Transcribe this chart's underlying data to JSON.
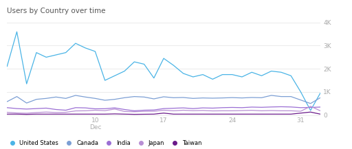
{
  "title": "Users by Country over time",
  "x_ticks": [
    10,
    17,
    24,
    31
  ],
  "x_tick_labels": [
    "10\nDec",
    "17",
    "24",
    "31"
  ],
  "ylim": [
    -50,
    4200
  ],
  "y_ticks": [
    0,
    1000,
    2000,
    3000,
    4000
  ],
  "y_tick_labels": [
    "0",
    "1K",
    "2K",
    "3K",
    "4K"
  ],
  "background_color": "#ffffff",
  "grid_color": "#e8e8e8",
  "series": {
    "United States": {
      "color": "#4ab4e6",
      "x": [
        1,
        2,
        3,
        4,
        5,
        6,
        7,
        8,
        9,
        10,
        11,
        12,
        13,
        14,
        15,
        16,
        17,
        18,
        19,
        20,
        21,
        22,
        23,
        24,
        25,
        26,
        27,
        28,
        29,
        30,
        31,
        32,
        33
      ],
      "y": [
        2100,
        3600,
        1350,
        2700,
        2500,
        2600,
        2700,
        3100,
        2900,
        2750,
        1500,
        1700,
        1900,
        2300,
        2200,
        1600,
        2450,
        2150,
        1800,
        1650,
        1750,
        1550,
        1750,
        1750,
        1650,
        1850,
        1700,
        1900,
        1850,
        1700,
        1000,
        200,
        950
      ]
    },
    "Canada": {
      "color": "#7c9fd4",
      "x": [
        1,
        2,
        3,
        4,
        5,
        6,
        7,
        8,
        9,
        10,
        11,
        12,
        13,
        14,
        15,
        16,
        17,
        18,
        19,
        20,
        21,
        22,
        23,
        24,
        25,
        26,
        27,
        28,
        29,
        30,
        31,
        32,
        33
      ],
      "y": [
        580,
        800,
        520,
        680,
        720,
        780,
        720,
        850,
        780,
        720,
        640,
        680,
        750,
        800,
        780,
        700,
        790,
        750,
        760,
        720,
        740,
        730,
        740,
        755,
        740,
        760,
        750,
        850,
        800,
        800,
        650,
        500,
        750
      ]
    },
    "India": {
      "color": "#9b6fd4",
      "x": [
        1,
        2,
        3,
        4,
        5,
        6,
        7,
        8,
        9,
        10,
        11,
        12,
        13,
        14,
        15,
        16,
        17,
        18,
        19,
        20,
        21,
        22,
        23,
        24,
        25,
        26,
        27,
        28,
        29,
        30,
        31,
        32,
        33
      ],
      "y": [
        320,
        280,
        260,
        280,
        300,
        240,
        210,
        320,
        310,
        270,
        275,
        310,
        240,
        185,
        210,
        220,
        280,
        295,
        310,
        280,
        310,
        300,
        320,
        330,
        320,
        345,
        335,
        350,
        360,
        350,
        320,
        330,
        345
      ]
    },
    "Japan": {
      "color": "#b88fd4",
      "x": [
        1,
        2,
        3,
        4,
        5,
        6,
        7,
        8,
        9,
        10,
        11,
        12,
        13,
        14,
        15,
        16,
        17,
        18,
        19,
        20,
        21,
        22,
        23,
        24,
        25,
        26,
        27,
        28,
        29,
        30,
        31,
        32,
        33
      ],
      "y": [
        120,
        90,
        80,
        110,
        130,
        110,
        120,
        180,
        185,
        210,
        190,
        260,
        155,
        145,
        160,
        165,
        210,
        185,
        210,
        190,
        200,
        180,
        185,
        185,
        195,
        205,
        185,
        195,
        185,
        185,
        165,
        380,
        185
      ]
    },
    "Taiwan": {
      "color": "#6a1a8a",
      "x": [
        1,
        2,
        3,
        4,
        5,
        6,
        7,
        8,
        9,
        10,
        11,
        12,
        13,
        14,
        15,
        16,
        17,
        18,
        19,
        20,
        21,
        22,
        23,
        24,
        25,
        26,
        27,
        28,
        29,
        30,
        31,
        32,
        33
      ],
      "y": [
        40,
        40,
        30,
        40,
        40,
        40,
        40,
        40,
        40,
        40,
        40,
        50,
        40,
        30,
        35,
        40,
        85,
        40,
        40,
        40,
        40,
        40,
        40,
        40,
        40,
        40,
        40,
        40,
        40,
        40,
        85,
        130,
        40
      ]
    }
  },
  "legend_order": [
    "United States",
    "Canada",
    "India",
    "Japan",
    "Taiwan"
  ]
}
